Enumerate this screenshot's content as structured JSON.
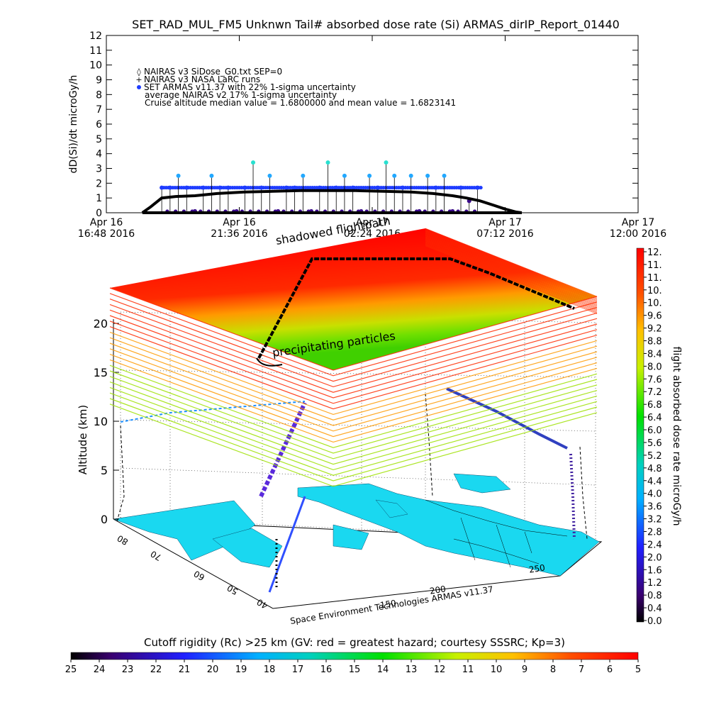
{
  "title": "SET_RAD_MUL_FM5 Unknwn Tail#  absorbed dose rate (Si) ARMAS_dirIP_Report_01440",
  "colors": {
    "nairas_v3": "#000000",
    "armas_low": "#3a0a8a",
    "armas_mid": "#1e3cff",
    "armas_high": "#22a8ff",
    "armas_peak": "#28e0d0",
    "map_land": "#1ad8f0",
    "layer_red": "#ff0000"
  },
  "chart_data": [
    {
      "type": "line",
      "ylabel": "dD(Si)/dt microGy/h",
      "ylim": [
        0,
        12
      ],
      "yticks": [
        "0",
        "1",
        "2",
        "3",
        "4",
        "5",
        "6",
        "7",
        "8",
        "9",
        "10",
        "11",
        "12"
      ],
      "xticks": [
        {
          "top": "Apr 16",
          "bottom": "16:48 2016"
        },
        {
          "top": "Apr 16",
          "bottom": "21:36 2016"
        },
        {
          "top": "Apr 17",
          "bottom": "02:24 2016"
        },
        {
          "top": "Apr 17",
          "bottom": "07:12 2016"
        },
        {
          "top": "Apr 17",
          "bottom": "12:00 2016"
        }
      ],
      "xlim_hours": [
        0,
        19.2
      ],
      "legend": [
        {
          "marker": "◊",
          "text": "NAIRAS v3 SiDose_G0.txt SEP=0"
        },
        {
          "marker": "+",
          "text": "NAIRAS v3 NASA LaRC runs"
        },
        {
          "marker": "●",
          "text": "SET ARMAS v11.37 with 22% 1-sigma uncertainty"
        },
        {
          "marker": "",
          "text": "average NAIRAS v2 17% 1-sigma uncertainty"
        },
        {
          "marker": "",
          "text": "Cruise altitude median value = 1.6800000 and mean value = 1.6823141"
        }
      ],
      "legend_position": "top-left",
      "nairas_series": {
        "name": "NAIRAS v3",
        "x_hours": [
          1.3,
          1.6,
          2.0,
          2.5,
          3.2,
          4.0,
          5.0,
          6.0,
          7.0,
          8.0,
          9.0,
          10.0,
          11.0,
          11.8,
          12.5,
          13.0,
          13.5,
          14.0,
          14.4,
          14.8,
          15.0
        ],
        "values": [
          0.0,
          0.4,
          1.0,
          1.1,
          1.15,
          1.3,
          1.4,
          1.45,
          1.5,
          1.5,
          1.5,
          1.45,
          1.4,
          1.3,
          1.15,
          1.0,
          0.8,
          0.5,
          0.25,
          0.05,
          0.0
        ]
      },
      "armas_series": {
        "name": "SET ARMAS v11.37",
        "x_hours": [
          2.0,
          2.3,
          2.6,
          2.9,
          3.2,
          3.5,
          3.8,
          4.1,
          4.4,
          4.7,
          5.0,
          5.3,
          5.6,
          5.9,
          6.2,
          6.5,
          6.8,
          7.1,
          7.4,
          7.7,
          8.0,
          8.3,
          8.6,
          8.9,
          9.2,
          9.5,
          9.8,
          10.1,
          10.4,
          10.7,
          11.0,
          11.3,
          11.6,
          11.9,
          12.2,
          12.5,
          12.8,
          13.1,
          13.4
        ],
        "values": [
          1.7,
          1.7,
          2.5,
          1.7,
          0.1,
          1.7,
          2.5,
          1.7,
          1.7,
          0.1,
          1.7,
          3.4,
          1.7,
          2.5,
          0.1,
          1.7,
          1.7,
          2.5,
          0.1,
          1.7,
          3.4,
          1.7,
          2.5,
          1.7,
          0.1,
          2.5,
          1.7,
          3.4,
          2.5,
          1.7,
          2.5,
          0.1,
          2.5,
          1.7,
          2.5,
          0.1,
          1.7,
          0.8,
          1.7
        ]
      }
    },
    {
      "type": "3d-scatter",
      "zlabel": "Altitude (km)",
      "zticks": [
        "0",
        "5",
        "10",
        "15",
        "20"
      ],
      "lon_ticks": [
        "150",
        "200",
        "250"
      ],
      "lat_ticks": [
        "40",
        "50",
        "60",
        "70",
        "80"
      ],
      "annotations": [
        "shadowed flightpath",
        "precipitating particles"
      ],
      "credit": "Space Environment Technologies ARMAS v11.37",
      "flight_path_altitude_km": [
        0,
        5,
        10,
        15,
        20,
        22,
        22,
        22,
        22,
        21
      ]
    }
  ],
  "colorbar_right": {
    "label": "flight absorbed dose rate microGy/h",
    "ticks": [
      "12.",
      "11.",
      "11.",
      "10.",
      "10.",
      "9.6",
      "9.2",
      "8.8",
      "8.4",
      "8.0",
      "7.6",
      "7.2",
      "6.8",
      "6.4",
      "6.0",
      "5.6",
      "5.2",
      "4.8",
      "4.4",
      "4.0",
      "3.6",
      "3.2",
      "2.8",
      "2.4",
      "2.0",
      "1.6",
      "1.2",
      "0.8",
      "0.4",
      "0.0"
    ]
  },
  "colorbar_bottom": {
    "label": "Cutoff rigidity (Rc) >25 km (GV: red = greatest hazard; courtesy SSSRC; Kp=3)",
    "ticks": [
      "25",
      "24",
      "23",
      "22",
      "21",
      "20",
      "19",
      "18",
      "17",
      "16",
      "15",
      "14",
      "13",
      "12",
      "11",
      "10",
      "9",
      "8",
      "7",
      "6",
      "5"
    ]
  }
}
